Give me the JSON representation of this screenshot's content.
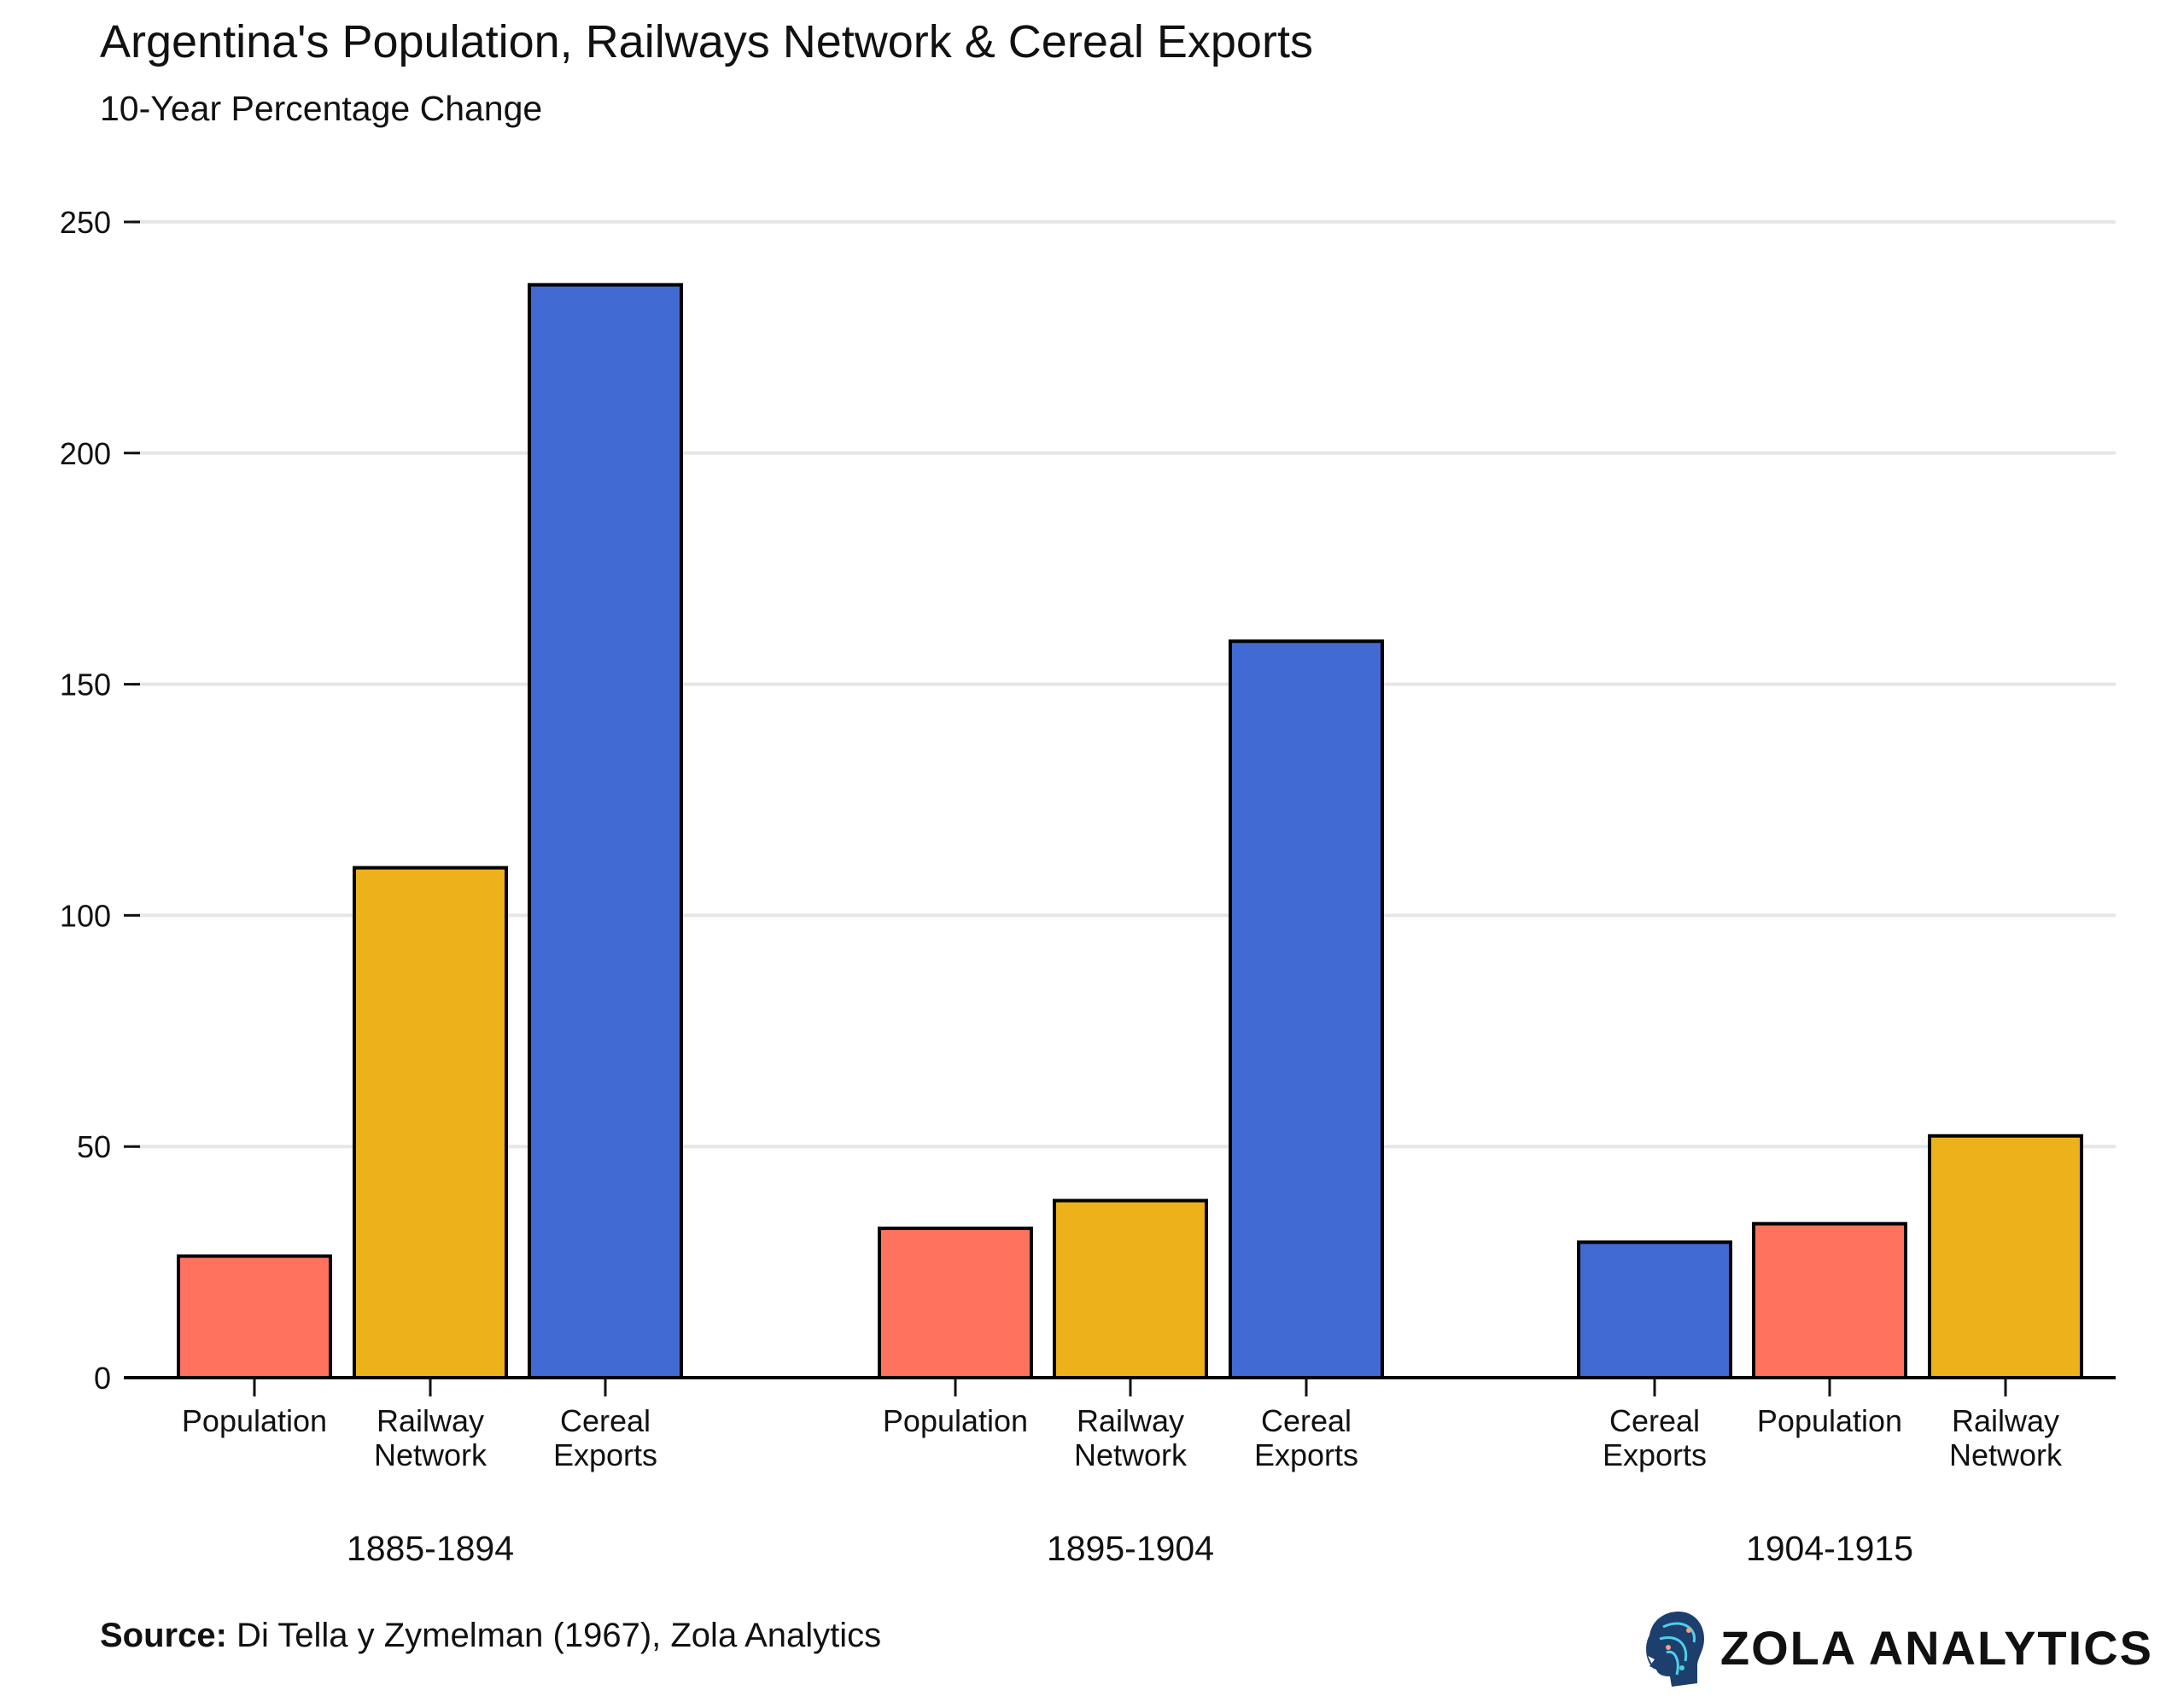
{
  "chart_data": {
    "type": "bar",
    "title": "Argentina's Population, Railways Network & Cereal Exports",
    "subtitle": "10-Year Percentage Change",
    "xlabel": "",
    "ylabel": "",
    "ylim": [
      0,
      250
    ],
    "yticks": [
      0,
      50,
      100,
      150,
      200,
      250
    ],
    "grid": true,
    "groups": [
      {
        "label": "1885-1894",
        "bars": [
          {
            "category": "Population",
            "label_lines": [
              "Population"
            ],
            "value": 26.3
          },
          {
            "category": "Railway Network",
            "label_lines": [
              "Railway",
              "Network"
            ],
            "value": 110.3
          },
          {
            "category": "Cereal Exports",
            "label_lines": [
              "Cereal",
              "Exports"
            ],
            "value": 236.4
          }
        ]
      },
      {
        "label": "1895-1904",
        "bars": [
          {
            "category": "Population",
            "label_lines": [
              "Population"
            ],
            "value": 32.3
          },
          {
            "category": "Railway Network",
            "label_lines": [
              "Railway",
              "Network"
            ],
            "value": 38.3
          },
          {
            "category": "Cereal Exports",
            "label_lines": [
              "Cereal",
              "Exports"
            ],
            "value": 159.3
          }
        ]
      },
      {
        "label": "1904-1915",
        "bars": [
          {
            "category": "Cereal Exports",
            "label_lines": [
              "Cereal",
              "Exports"
            ],
            "value": 29.3
          },
          {
            "category": "Population",
            "label_lines": [
              "Population"
            ],
            "value": 33.3
          },
          {
            "category": "Railway Network",
            "label_lines": [
              "Railway",
              "Network"
            ],
            "value": 52.3
          }
        ]
      }
    ],
    "colors": {
      "Population": "#FF735E",
      "Railway Network": "#EDB11A",
      "Cereal Exports": "#426AD3"
    }
  },
  "footer": {
    "source_label": "Source:",
    "source_text": " Di Tella y Zymelman (1967), Zola Analytics",
    "brand": "ZOLA ANALYTICS"
  }
}
